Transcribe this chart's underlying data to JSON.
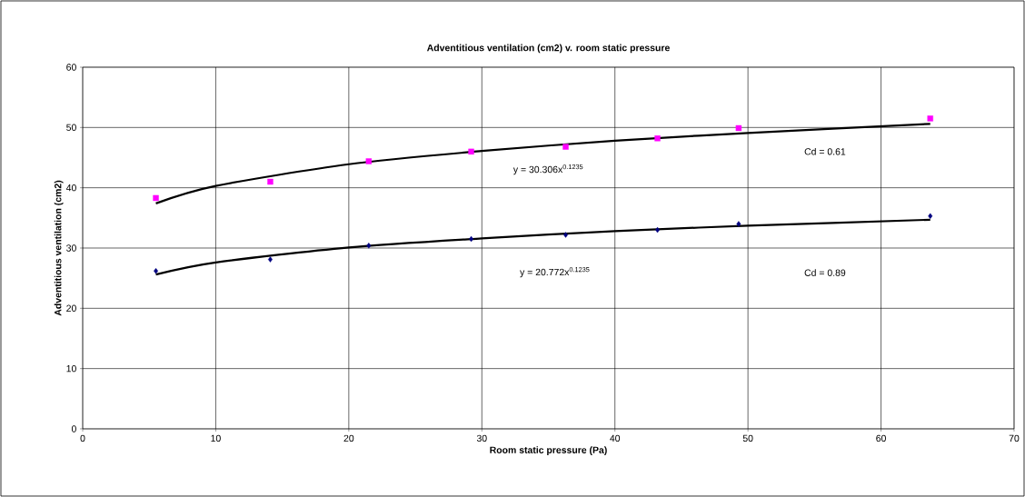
{
  "chart_data": {
    "type": "scatter",
    "title": "Adventitious ventilation (cm2) v. room static pressure",
    "xlabel": "Room static pressure (Pa)",
    "ylabel": "Adventitious ventilation (cm2)",
    "xlim": [
      0,
      70
    ],
    "ylim": [
      0,
      60
    ],
    "xticks": [
      0,
      10,
      20,
      30,
      40,
      50,
      60,
      70
    ],
    "yticks": [
      0,
      10,
      20,
      30,
      40,
      50,
      60
    ],
    "grid": true,
    "series": [
      {
        "marker": "square",
        "color": "#ff00ff",
        "x": [
          5.5,
          14.1,
          21.5,
          29.2,
          36.3,
          43.2,
          49.3,
          63.7
        ],
        "values": [
          38.3,
          41.0,
          44.4,
          46.0,
          46.8,
          48.2,
          49.9,
          51.5
        ]
      },
      {
        "marker": "diamond",
        "color": "#000080",
        "x": [
          5.5,
          14.1,
          21.5,
          29.2,
          36.3,
          43.2,
          49.3,
          63.7
        ],
        "values": [
          26.2,
          28.1,
          30.4,
          31.5,
          32.2,
          33.0,
          34.0,
          35.3
        ]
      },
      {
        "type": "line",
        "marker": "none",
        "color": "#000000",
        "x": [
          5.5,
          10,
          20,
          30,
          40,
          50,
          63.7
        ],
        "values": [
          37.4,
          40.3,
          43.9,
          46.1,
          47.8,
          49.1,
          50.6
        ]
      },
      {
        "type": "line",
        "marker": "none",
        "color": "#000000",
        "x": [
          5.5,
          10,
          20,
          30,
          40,
          50,
          63.7
        ],
        "values": [
          25.6,
          27.6,
          30.1,
          31.6,
          32.8,
          33.7,
          34.7
        ]
      }
    ],
    "annotations": [
      "y = 30.306x$^{0.1235}$",
      "Cd = 0.61",
      "y = 20.772x$^{0.1235}$",
      "Cd = 0.89"
    ]
  }
}
